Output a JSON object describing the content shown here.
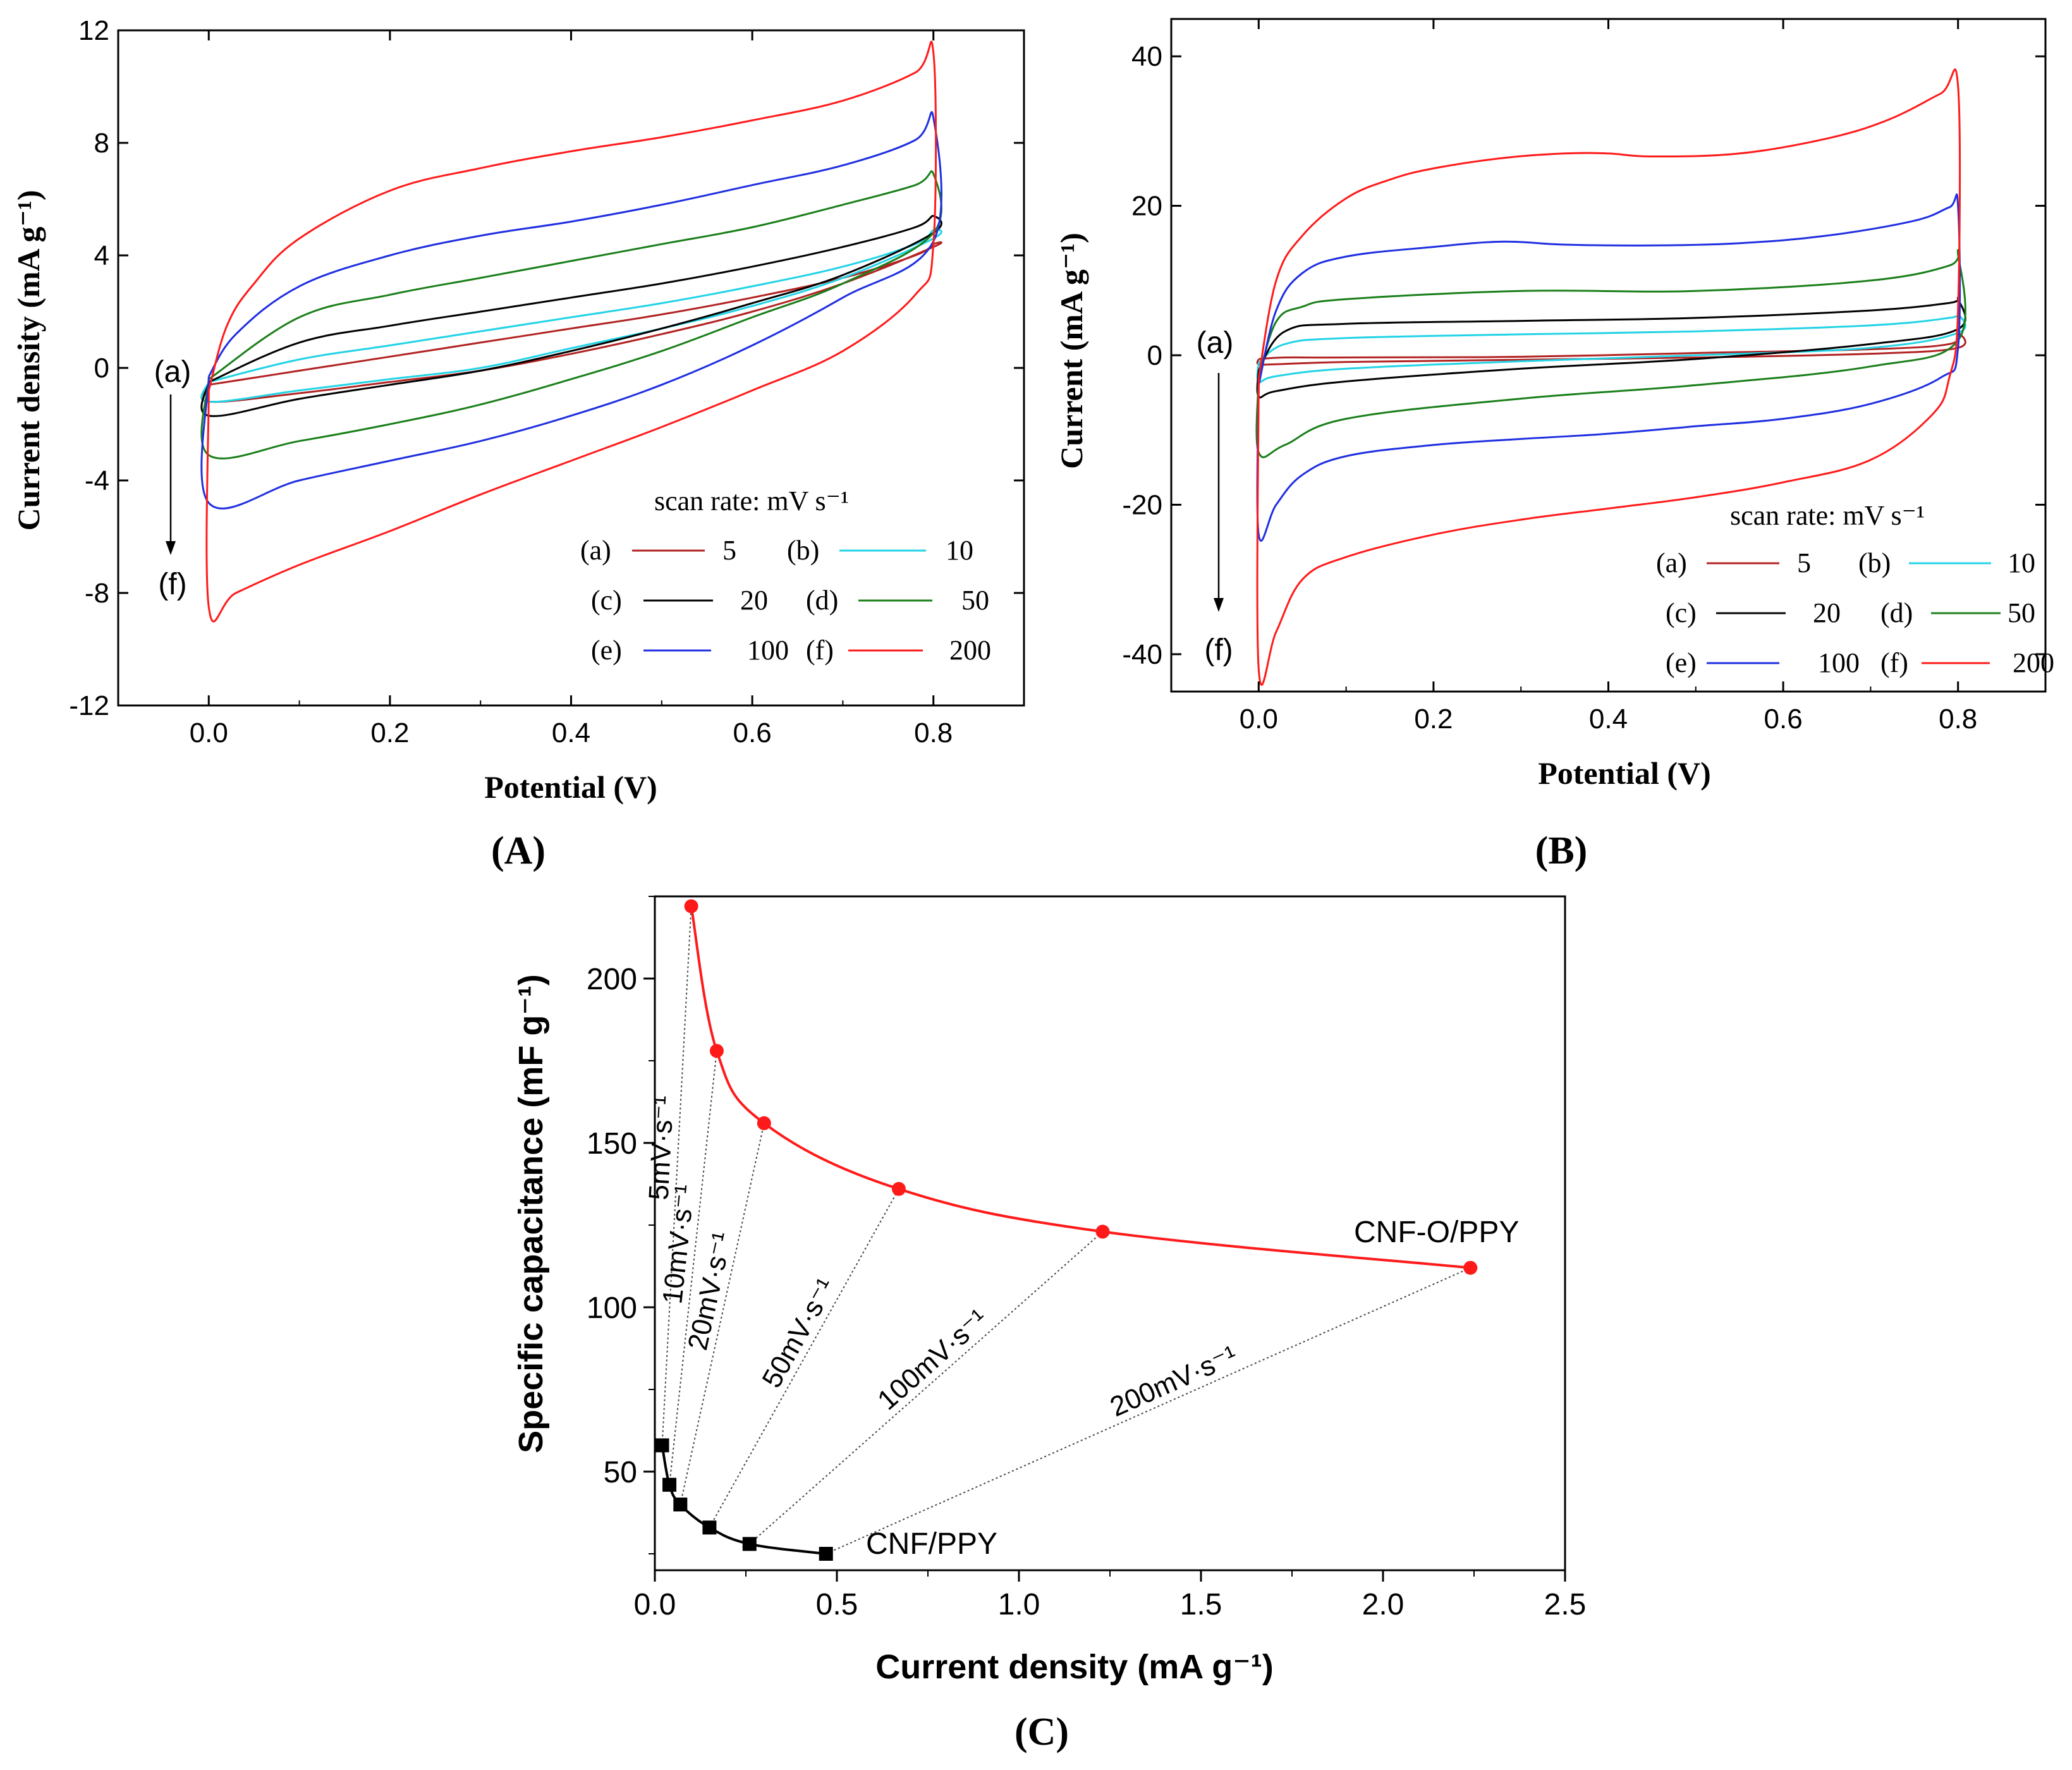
{
  "colors": {
    "a": "#b22222",
    "b": "#22d3e6",
    "c": "#000000",
    "d": "#1a7f1a",
    "e": "#1f2fe0",
    "f": "#ff1a1a",
    "capO": "#ff1a1a",
    "capP": "#000000"
  },
  "chart_data": [
    {
      "panel_label": "(A)",
      "type": "line",
      "title": "",
      "xlabel": "Potential  (V)",
      "ylabel": "Current density (mA g⁻¹)",
      "xlim": [
        -0.1,
        0.9
      ],
      "ylim": [
        -12,
        12
      ],
      "xticks": [
        "0.0",
        "0.2",
        "0.4",
        "0.6",
        "0.8"
      ],
      "yticks": [
        "-12",
        "-8",
        "-4",
        "0",
        "4",
        "8",
        "12"
      ],
      "legend_title": "scan rate:  mV s⁻¹",
      "legend_placement": "bottom-right",
      "arrow_labels": {
        "start": "(a)",
        "end": "(f)"
      },
      "series": [
        {
          "id": "a",
          "label": "(a)",
          "name": "5",
          "x": [
            0.0,
            0.1,
            0.2,
            0.3,
            0.4,
            0.5,
            0.6,
            0.7,
            0.78,
            0.8,
            0.8,
            0.7,
            0.6,
            0.5,
            0.4,
            0.3,
            0.2,
            0.1,
            0.0,
            0.0
          ],
          "y": [
            -0.6,
            -0.1,
            0.4,
            0.9,
            1.4,
            1.9,
            2.5,
            3.2,
            4.0,
            4.4,
            4.3,
            3.0,
            2.0,
            1.2,
            0.5,
            -0.1,
            -0.5,
            -0.9,
            -1.2,
            -0.6
          ]
        },
        {
          "id": "b",
          "label": "(b)",
          "name": "10",
          "x": [
            0.0,
            0.1,
            0.2,
            0.3,
            0.4,
            0.5,
            0.6,
            0.7,
            0.78,
            0.8,
            0.8,
            0.7,
            0.6,
            0.5,
            0.4,
            0.3,
            0.2,
            0.1,
            0.0,
            0.0
          ],
          "y": [
            -0.5,
            0.3,
            0.8,
            1.3,
            1.8,
            2.3,
            2.9,
            3.6,
            4.4,
            4.9,
            4.6,
            3.2,
            2.2,
            1.4,
            0.7,
            0.0,
            -0.4,
            -0.8,
            -1.2,
            -0.5
          ]
        },
        {
          "id": "c",
          "label": "(c)",
          "name": "20",
          "x": [
            0.0,
            0.1,
            0.2,
            0.3,
            0.4,
            0.5,
            0.6,
            0.7,
            0.78,
            0.8,
            0.8,
            0.7,
            0.6,
            0.5,
            0.4,
            0.3,
            0.2,
            0.1,
            0.0,
            0.0
          ],
          "y": [
            -0.5,
            0.9,
            1.5,
            2.0,
            2.5,
            3.0,
            3.6,
            4.3,
            5.0,
            5.4,
            4.8,
            3.3,
            2.3,
            1.4,
            0.6,
            -0.1,
            -0.6,
            -1.1,
            -1.7,
            -0.5
          ]
        },
        {
          "id": "d",
          "label": "(d)",
          "name": "50",
          "x": [
            0.0,
            0.1,
            0.2,
            0.3,
            0.4,
            0.5,
            0.6,
            0.7,
            0.78,
            0.8,
            0.8,
            0.7,
            0.6,
            0.5,
            0.4,
            0.3,
            0.2,
            0.1,
            0.0,
            0.0
          ],
          "y": [
            -0.4,
            1.8,
            2.6,
            3.2,
            3.8,
            4.4,
            5.0,
            5.8,
            6.5,
            6.9,
            4.8,
            3.0,
            1.8,
            0.6,
            -0.4,
            -1.3,
            -2.0,
            -2.6,
            -3.1,
            -0.4
          ]
        },
        {
          "id": "e",
          "label": "(e)",
          "name": "100",
          "x": [
            0.0,
            0.03,
            0.1,
            0.2,
            0.3,
            0.4,
            0.5,
            0.6,
            0.7,
            0.78,
            0.8,
            0.8,
            0.7,
            0.6,
            0.5,
            0.4,
            0.3,
            0.2,
            0.1,
            0.0,
            0.0
          ],
          "y": [
            -0.3,
            1.2,
            2.9,
            4.0,
            4.7,
            5.2,
            5.8,
            6.5,
            7.2,
            8.1,
            8.9,
            4.5,
            2.5,
            0.8,
            -0.6,
            -1.7,
            -2.6,
            -3.3,
            -4.0,
            -4.8,
            -0.3
          ]
        },
        {
          "id": "f",
          "label": "(f)",
          "name": "200",
          "x": [
            0.0,
            0.02,
            0.05,
            0.1,
            0.2,
            0.3,
            0.4,
            0.5,
            0.6,
            0.7,
            0.78,
            0.8,
            0.8,
            0.78,
            0.7,
            0.6,
            0.5,
            0.4,
            0.3,
            0.2,
            0.1,
            0.03,
            0.0,
            0.0
          ],
          "y": [
            -0.8,
            1.5,
            3.0,
            4.6,
            6.3,
            7.1,
            7.7,
            8.2,
            8.8,
            9.5,
            10.5,
            11.2,
            4.4,
            2.6,
            0.6,
            -0.8,
            -2.1,
            -3.3,
            -4.5,
            -5.8,
            -7.0,
            -8.0,
            -8.5,
            -0.8
          ]
        }
      ]
    },
    {
      "panel_label": "(B)",
      "type": "line",
      "title": "",
      "xlabel": "Potential  (V)",
      "ylabel": "Current  (mA g⁻¹)",
      "xlim": [
        -0.1,
        0.9
      ],
      "ylim": [
        -45,
        45
      ],
      "xticks": [
        "0.0",
        "0.2",
        "0.4",
        "0.6",
        "0.8"
      ],
      "yticks": [
        "-40",
        "-20",
        "0",
        "20",
        "40"
      ],
      "legend_title": "scan rate:  mV s⁻¹",
      "legend_placement": "bottom-right",
      "arrow_labels": {
        "start": "(a)",
        "end": "(f)"
      },
      "series": [
        {
          "id": "a",
          "label": "(a)",
          "name": "5",
          "x": [
            0.0,
            0.03,
            0.1,
            0.3,
            0.5,
            0.7,
            0.79,
            0.8,
            0.8,
            0.7,
            0.5,
            0.3,
            0.1,
            0.02,
            0.0,
            0.0
          ],
          "y": [
            -0.5,
            -0.3,
            -0.3,
            -0.2,
            0.3,
            0.8,
            1.5,
            3.0,
            1.0,
            0.2,
            -0.3,
            -0.6,
            -0.9,
            -1.2,
            -1.2,
            -0.5
          ]
        },
        {
          "id": "b",
          "label": "(b)",
          "name": "10",
          "x": [
            0.0,
            0.03,
            0.1,
            0.3,
            0.5,
            0.7,
            0.79,
            0.8,
            0.8,
            0.7,
            0.5,
            0.3,
            0.1,
            0.02,
            0.0,
            0.0
          ],
          "y": [
            -1.0,
            1.5,
            2.3,
            2.8,
            3.2,
            4.0,
            5.0,
            5.5,
            3.0,
            1.0,
            0.0,
            -0.8,
            -1.8,
            -2.8,
            -3.5,
            -1.0
          ]
        },
        {
          "id": "c",
          "label": "(c)",
          "name": "20",
          "x": [
            0.0,
            0.03,
            0.1,
            0.3,
            0.5,
            0.7,
            0.79,
            0.8,
            0.8,
            0.7,
            0.5,
            0.3,
            0.1,
            0.02,
            0.0,
            0.0
          ],
          "y": [
            -2.0,
            3.2,
            4.2,
            4.6,
            5.0,
            6.0,
            7.0,
            7.5,
            3.5,
            1.5,
            -0.5,
            -1.8,
            -3.5,
            -4.8,
            -5.5,
            -2.0
          ]
        },
        {
          "id": "d",
          "label": "(d)",
          "name": "50",
          "x": [
            0.0,
            0.02,
            0.05,
            0.1,
            0.3,
            0.5,
            0.7,
            0.79,
            0.8,
            0.8,
            0.7,
            0.5,
            0.3,
            0.1,
            0.03,
            0.0,
            0.0
          ],
          "y": [
            -3.0,
            4.5,
            6.5,
            7.5,
            8.6,
            8.6,
            10.0,
            12.0,
            13.5,
            2.0,
            -1.5,
            -4.0,
            -5.8,
            -8.5,
            -12.0,
            -13.0,
            -3.0
          ]
        },
        {
          "id": "e",
          "label": "(e)",
          "name": "100",
          "x": [
            0.0,
            0.02,
            0.05,
            0.1,
            0.2,
            0.28,
            0.35,
            0.45,
            0.55,
            0.65,
            0.75,
            0.79,
            0.8,
            0.8,
            0.78,
            0.7,
            0.6,
            0.5,
            0.4,
            0.3,
            0.2,
            0.1,
            0.05,
            0.02,
            0.0,
            0.0
          ],
          "y": [
            -4.0,
            6.0,
            11.0,
            13.2,
            14.5,
            15.2,
            14.8,
            14.7,
            15.0,
            16.0,
            18.0,
            19.8,
            20.0,
            1.0,
            -3.0,
            -6.5,
            -8.5,
            -9.5,
            -10.5,
            -11.2,
            -12.0,
            -13.5,
            -16.0,
            -20.0,
            -24.0,
            -4.0
          ]
        },
        {
          "id": "f",
          "label": "(f)",
          "name": "200",
          "x": [
            0.0,
            0.02,
            0.05,
            0.1,
            0.15,
            0.2,
            0.28,
            0.35,
            0.4,
            0.45,
            0.55,
            0.65,
            0.72,
            0.78,
            0.8,
            0.8,
            0.79,
            0.77,
            0.7,
            0.6,
            0.5,
            0.4,
            0.3,
            0.2,
            0.1,
            0.05,
            0.02,
            0.0,
            0.0
          ],
          "y": [
            -3.0,
            10.0,
            16.0,
            21.0,
            23.5,
            25.0,
            26.4,
            27.0,
            27.0,
            26.6,
            27.0,
            29.0,
            31.5,
            35.0,
            36.0,
            6.0,
            -3.0,
            -8.0,
            -14.0,
            -17.0,
            -19.0,
            -20.5,
            -22.0,
            -24.0,
            -27.0,
            -30.0,
            -37.0,
            -42.0,
            -3.0
          ]
        }
      ]
    },
    {
      "panel_label": "(C)",
      "type": "scatter",
      "title": "",
      "xlabel": "Current density (mA g⁻¹)",
      "ylabel": "Specific capacitance (mF g⁻¹)",
      "xlim": [
        0,
        2.5
      ],
      "ylim": [
        20,
        225
      ],
      "xticks": [
        "0.0",
        "0.5",
        "1.0",
        "1.5",
        "2.0",
        "2.5"
      ],
      "yticks": [
        "50",
        "100",
        "150",
        "200"
      ],
      "series": [
        {
          "id": "capO",
          "name": "CNF-O/PPY",
          "marker": "circle",
          "x": [
            0.1,
            0.17,
            0.3,
            0.67,
            1.23,
            2.24
          ],
          "y": [
            222,
            178,
            156,
            136,
            123,
            112
          ]
        },
        {
          "id": "capP",
          "name": "CNF/PPY",
          "marker": "square",
          "x": [
            0.02,
            0.04,
            0.07,
            0.15,
            0.26,
            0.47
          ],
          "y": [
            58,
            46,
            40,
            33,
            28,
            25
          ]
        }
      ],
      "rate_labels": [
        "5mV·s⁻¹",
        "10mV·s⁻¹",
        "20mV·s⁻¹",
        "50mV·s⁻¹",
        "100mV·s⁻¹",
        "200mV·s⁻¹"
      ]
    }
  ]
}
